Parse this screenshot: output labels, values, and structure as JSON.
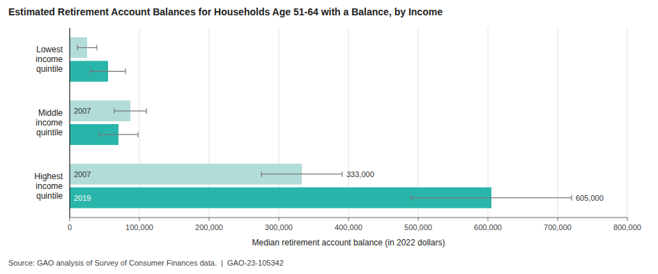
{
  "chart_data": {
    "type": "bar",
    "orientation": "horizontal",
    "title": "Estimated Retirement Account Balances for Households Age 51-64 with a Balance, by Income",
    "xlabel": "Median retirement account balance (in 2022 dollars)",
    "source": "Source: GAO analysis of Survey of Consumer Finances data.  |  GAO-23-105342",
    "categories": [
      "Lowest\nincome\nquintile",
      "Middle\nincome\nquintile",
      "Highest\nincome\nquintile"
    ],
    "series": [
      {
        "name": "2007",
        "color": "#b2dcd8",
        "values": [
          25000,
          87000,
          333000
        ],
        "errors": [
          14000,
          23000,
          58000
        ],
        "value_labels": [
          null,
          null,
          "333,000"
        ]
      },
      {
        "name": "2019",
        "color": "#2ab5aa",
        "values": [
          55000,
          70000,
          605000
        ],
        "errors": [
          25000,
          28000,
          115000
        ],
        "value_labels": [
          null,
          null,
          "605,000"
        ]
      }
    ],
    "annotations": [
      {
        "series": 0,
        "category": 1
      },
      {
        "series": 0,
        "category": 2
      },
      {
        "series": 1,
        "category": 2
      }
    ],
    "xlim": [
      0,
      800000
    ],
    "xticks": [
      0,
      {
        "value": 100000,
        "label": "100,000"
      },
      {
        "value": 200000,
        "label": "200,000"
      },
      {
        "value": 300000,
        "label": "300,000"
      },
      {
        "value": 400000,
        "label": "400,000"
      },
      {
        "value": 500000,
        "label": "500,000"
      },
      {
        "value": 600000,
        "label": "600,000"
      },
      {
        "value": 700000,
        "label": "700,000"
      },
      {
        "value": 800000,
        "label": "800,000"
      }
    ],
    "grid": true
  }
}
